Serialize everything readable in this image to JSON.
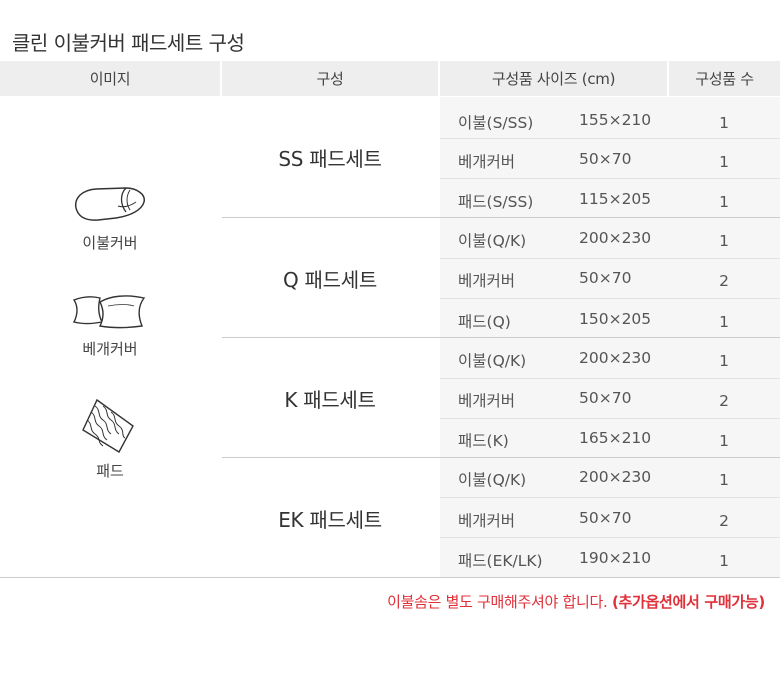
{
  "title": "클린 이불커버 패드세트 구성",
  "headers": {
    "image": "이미지",
    "composition": "구성",
    "size": "구성품 사이즈 (cm)",
    "qty": "구성품 수"
  },
  "images": [
    {
      "label": "이불커버",
      "icon": "comforter-icon"
    },
    {
      "label": "베개커버",
      "icon": "pillow-icon"
    },
    {
      "label": "패드",
      "icon": "pad-icon"
    }
  ],
  "sets": [
    {
      "name": "SS 패드세트",
      "rows": [
        {
          "item": "이불(S/SS)",
          "size": "155×210",
          "qty": "1"
        },
        {
          "item": "베개커버",
          "size": "50×70",
          "qty": "1"
        },
        {
          "item": "패드(S/SS)",
          "size": "115×205",
          "qty": "1"
        }
      ]
    },
    {
      "name": "Q 패드세트",
      "rows": [
        {
          "item": "이불(Q/K)",
          "size": "200×230",
          "qty": "1"
        },
        {
          "item": "베개커버",
          "size": "50×70",
          "qty": "2"
        },
        {
          "item": "패드(Q)",
          "size": "150×205",
          "qty": "1"
        }
      ]
    },
    {
      "name": "K 패드세트",
      "rows": [
        {
          "item": "이불(Q/K)",
          "size": "200×230",
          "qty": "1"
        },
        {
          "item": "베개커버",
          "size": "50×70",
          "qty": "2"
        },
        {
          "item": "패드(K)",
          "size": "165×210",
          "qty": "1"
        }
      ]
    },
    {
      "name": "EK 패드세트",
      "rows": [
        {
          "item": "이불(Q/K)",
          "size": "200×230",
          "qty": "1"
        },
        {
          "item": "베개커버",
          "size": "50×70",
          "qty": "2"
        },
        {
          "item": "패드(EK/LK)",
          "size": "190×210",
          "qty": "1"
        }
      ]
    }
  ],
  "note": {
    "text": "이불솜은 별도 구매해주셔야 합니다. ",
    "emphasis": "(추가옵션에서 구매가능)"
  },
  "colors": {
    "header_bg": "#eeeeee",
    "band_bg": "#f6f6f6",
    "note": "#e0303a"
  }
}
